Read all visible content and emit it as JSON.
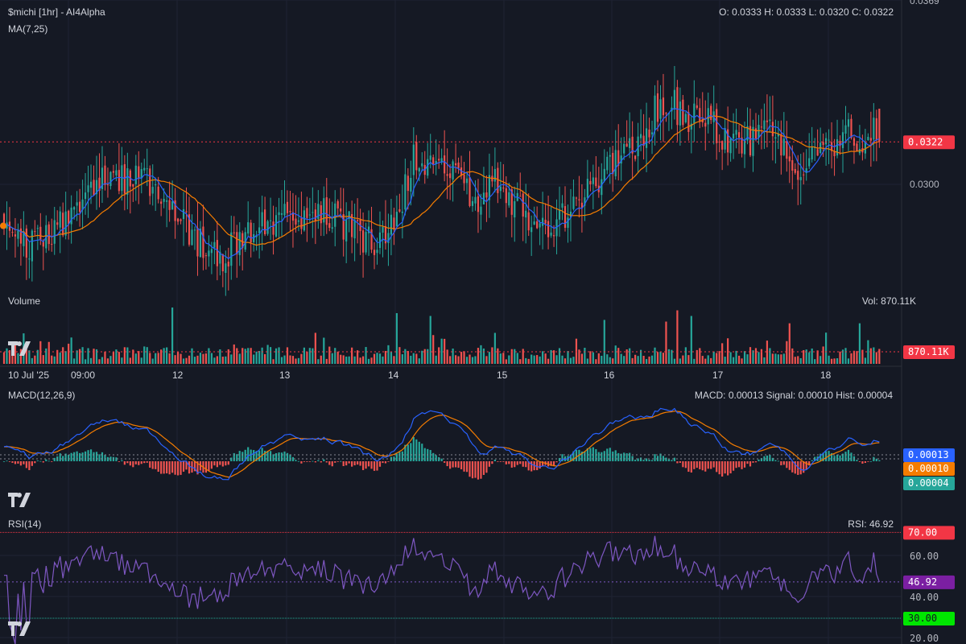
{
  "header": {
    "symbol_title": "$michi [1hr] - AI4Alpha",
    "ohlc": "O: 0.0333 H: 0.0333 L: 0.0320 C: 0.0322",
    "ma_label": "MA(7,25)"
  },
  "volume_panel": {
    "title": "Volume",
    "readout": "Vol: 870.11K",
    "last_badge": "870.11K"
  },
  "macd_panel": {
    "title": "MACD(12,26,9)",
    "readout": "MACD: 0.00013 Signal: 0.00010 Hist: 0.00004",
    "badges": {
      "macd": "0.00013",
      "signal": "0.00010",
      "hist": "0.00004"
    }
  },
  "rsi_panel": {
    "title": "RSI(14)",
    "readout": "RSI: 46.92",
    "badges": {
      "upper": "70.00",
      "value": "46.92",
      "lower": "30.00"
    }
  },
  "price_axis": {
    "ticks": [
      "0.0369",
      "0.0300"
    ],
    "last_badge": "0.0322"
  },
  "rsi_axis": {
    "ticks": [
      "60.00",
      "40.00",
      "20.00"
    ]
  },
  "time_axis": {
    "labels": [
      "10 Jul '25",
      "09:00",
      "12",
      "13",
      "14",
      "15",
      "16",
      "17",
      "18"
    ]
  },
  "colors": {
    "background": "#151924",
    "up": "#26a69a",
    "down": "#ef5350",
    "ma7": "#2962ff",
    "ma25": "#f57c00",
    "macd": "#2962ff",
    "signal": "#f57c00",
    "rsi": "#7e57c2",
    "rsi_upper": "#f23645",
    "rsi_lower": "#22ab94",
    "rsi_value": "#7b1fa2",
    "last_badge": "#f23645"
  },
  "chart_data": [
    {
      "type": "candlestick",
      "title": "$michi [1hr] - AI4Alpha",
      "y_ticks": [
        "0.0369",
        "0.0300"
      ],
      "last_close": 0.0322,
      "last_ohlc": {
        "open": 0.0333,
        "high": 0.0333,
        "low": 0.032,
        "close": 0.0322
      },
      "ylim": [
        0.0273,
        0.0369
      ],
      "x_labels": [
        "10 Jul '25",
        "09:00",
        "12",
        "13",
        "14",
        "15",
        "16",
        "17",
        "18"
      ],
      "close_path": [
        [
          0,
          0.0294
        ],
        [
          8,
          0.0287
        ],
        [
          14,
          0.0291
        ],
        [
          22,
          0.0297
        ],
        [
          28,
          0.0305
        ],
        [
          35,
          0.0311
        ],
        [
          42,
          0.031
        ],
        [
          50,
          0.0309
        ],
        [
          56,
          0.0303
        ],
        [
          63,
          0.0296
        ],
        [
          70,
          0.0288
        ],
        [
          76,
          0.0283
        ],
        [
          84,
          0.0289
        ],
        [
          92,
          0.0294
        ],
        [
          100,
          0.0297
        ],
        [
          107,
          0.0298
        ],
        [
          114,
          0.0298
        ],
        [
          121,
          0.0295
        ],
        [
          128,
          0.029
        ],
        [
          134,
          0.0287
        ],
        [
          142,
          0.0303
        ],
        [
          146,
          0.0318
        ],
        [
          150,
          0.0316
        ],
        [
          156,
          0.0313
        ],
        [
          162,
          0.0309
        ],
        [
          168,
          0.0303
        ],
        [
          172,
          0.0307
        ],
        [
          176,
          0.031
        ],
        [
          180,
          0.0304
        ],
        [
          186,
          0.0296
        ],
        [
          192,
          0.0294
        ],
        [
          198,
          0.0296
        ],
        [
          204,
          0.03
        ],
        [
          210,
          0.0308
        ],
        [
          216,
          0.0313
        ],
        [
          222,
          0.0319
        ],
        [
          228,
          0.0324
        ],
        [
          232,
          0.0332
        ],
        [
          238,
          0.0335
        ],
        [
          244,
          0.0329
        ],
        [
          248,
          0.0334
        ],
        [
          254,
          0.0326
        ],
        [
          260,
          0.032
        ],
        [
          266,
          0.0323
        ],
        [
          272,
          0.033
        ],
        [
          278,
          0.032
        ],
        [
          284,
          0.0313
        ],
        [
          290,
          0.0318
        ],
        [
          295,
          0.0321
        ],
        [
          300,
          0.0325
        ],
        [
          306,
          0.0324
        ],
        [
          312,
          0.0327
        ]
      ],
      "ma_periods": [
        7,
        25
      ],
      "series": [
        {
          "name": "MA(7,25)",
          "role": "ma7"
        },
        {
          "name": "MA(7,25)",
          "role": "ma25"
        }
      ]
    },
    {
      "type": "bar",
      "title": "Volume",
      "last_value": "870.11K",
      "spikes": {
        "60": 1.0,
        "140": 0.9,
        "152": 0.85,
        "175": 0.55,
        "214": 0.78,
        "236": 0.75,
        "240": 0.95,
        "245": 0.85,
        "280": 0.72,
        "305": 0.72
      }
    },
    {
      "type": "line",
      "title": "MACD(12,26,9)",
      "params": [
        12,
        26,
        9
      ],
      "last": {
        "macd": 0.00013,
        "signal": 0.0001,
        "hist": 4e-05
      },
      "series": [
        {
          "name": "MACD"
        },
        {
          "name": "Signal"
        },
        {
          "name": "Hist"
        }
      ]
    },
    {
      "type": "line",
      "title": "RSI(14)",
      "period": 14,
      "last_value": 46.92,
      "levels": [
        70,
        30
      ],
      "ylim": [
        18,
        78
      ],
      "y_ticks": [
        60,
        40,
        20
      ]
    }
  ]
}
